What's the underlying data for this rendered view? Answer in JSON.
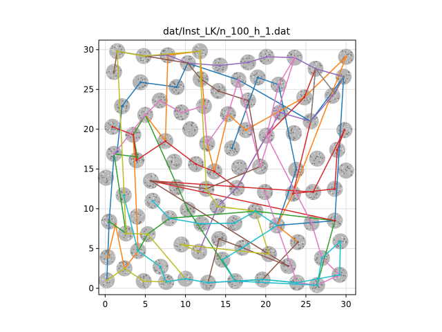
{
  "chart_data": {
    "type": "scatter",
    "title": "dat/Inst_LK/n_100_h_1.dat",
    "xlabel": "",
    "ylabel": "",
    "xlim": [
      -0.8,
      31.2
    ],
    "ylim": [
      -0.8,
      31.2
    ],
    "xticks": [
      0,
      5,
      10,
      15,
      20,
      25,
      30
    ],
    "yticks": [
      0,
      5,
      10,
      15,
      20,
      25,
      30
    ],
    "tick_labels": {
      "x": [
        "0",
        "5",
        "10",
        "15",
        "20",
        "25",
        "30"
      ],
      "y": [
        "0",
        "5",
        "10",
        "15",
        "20",
        "25",
        "30"
      ]
    },
    "grid": true,
    "region_radius": 1.0,
    "region_color": "#a9a9a9",
    "regions": [
      [
        0.2,
        1.0
      ],
      [
        2.4,
        2.5
      ],
      [
        4.8,
        0.9
      ],
      [
        7.6,
        0.8
      ],
      [
        10.0,
        1.2
      ],
      [
        12.8,
        0.7
      ],
      [
        16.2,
        0.9
      ],
      [
        19.6,
        1.1
      ],
      [
        23.9,
        0.7
      ],
      [
        26.4,
        0.4
      ],
      [
        29.2,
        1.7
      ],
      [
        0.3,
        3.9
      ],
      [
        4.1,
        4.7
      ],
      [
        6.9,
        2.7
      ],
      [
        11.7,
        4.6
      ],
      [
        14.6,
        3.6
      ],
      [
        17.1,
        5.1
      ],
      [
        20.4,
        4.3
      ],
      [
        22.8,
        2.8
      ],
      [
        24.0,
        5.8
      ],
      [
        27.0,
        3.8
      ],
      [
        29.3,
        5.9
      ],
      [
        0.5,
        8.4
      ],
      [
        2.6,
        6.9
      ],
      [
        5.3,
        6.8
      ],
      [
        8.0,
        8.8
      ],
      [
        9.5,
        5.5
      ],
      [
        12.0,
        8.1
      ],
      [
        14.2,
        6.2
      ],
      [
        16.1,
        8.2
      ],
      [
        18.7,
        9.7
      ],
      [
        21.4,
        7.9
      ],
      [
        25.7,
        8.2
      ],
      [
        28.6,
        8.5
      ],
      [
        0.1,
        13.9
      ],
      [
        2.3,
        11.7
      ],
      [
        4.0,
        9.0
      ],
      [
        5.9,
        11.0
      ],
      [
        5.7,
        13.5
      ],
      [
        8.9,
        12.7
      ],
      [
        10.3,
        9.9
      ],
      [
        12.6,
        12.5
      ],
      [
        14.0,
        10.3
      ],
      [
        16.4,
        12.6
      ],
      [
        19.9,
        12.1
      ],
      [
        23.4,
        11.9
      ],
      [
        25.9,
        12.1
      ],
      [
        28.6,
        12.5
      ],
      [
        1.1,
        16.9
      ],
      [
        3.9,
        16.1
      ],
      [
        7.5,
        18.5
      ],
      [
        8.6,
        15.9
      ],
      [
        11.3,
        15.6
      ],
      [
        13.6,
        14.7
      ],
      [
        15.8,
        17.6
      ],
      [
        16.7,
        15.2
      ],
      [
        19.3,
        15.3
      ],
      [
        23.8,
        14.9
      ],
      [
        26.4,
        16.3
      ],
      [
        28.9,
        17.4
      ],
      [
        30.0,
        14.8
      ],
      [
        0.9,
        20.3
      ],
      [
        3.5,
        19.3
      ],
      [
        5.0,
        21.8
      ],
      [
        2.1,
        22.9
      ],
      [
        6.8,
        23.6
      ],
      [
        9.5,
        22.1
      ],
      [
        10.6,
        20.0
      ],
      [
        12.7,
        18.2
      ],
      [
        15.3,
        21.9
      ],
      [
        17.5,
        19.9
      ],
      [
        20.1,
        19.2
      ],
      [
        21.8,
        22.1
      ],
      [
        23.5,
        19.5
      ],
      [
        25.6,
        21.0
      ],
      [
        29.8,
        19.9
      ],
      [
        1.1,
        27.2
      ],
      [
        1.5,
        29.8
      ],
      [
        4.4,
        25.9
      ],
      [
        4.8,
        29.2
      ],
      [
        7.8,
        29.3
      ],
      [
        8.9,
        25.3
      ],
      [
        10.3,
        28.3
      ],
      [
        11.8,
        29.8
      ],
      [
        11.9,
        26.3
      ],
      [
        12.3,
        22.9
      ],
      [
        14.1,
        24.8
      ],
      [
        14.3,
        28.0
      ],
      [
        16.6,
        26.2
      ],
      [
        17.8,
        23.6
      ],
      [
        17.8,
        28.4
      ],
      [
        19.0,
        26.5
      ],
      [
        20.1,
        29.1
      ],
      [
        21.6,
        25.6
      ],
      [
        23.6,
        29.0
      ],
      [
        24.8,
        24.0
      ],
      [
        26.2,
        27.6
      ],
      [
        28.3,
        24.2
      ],
      [
        29.7,
        26.6
      ],
      [
        30.0,
        29.1
      ]
    ],
    "series": [
      {
        "color": "#1f77b4",
        "points": [
          [
            0.2,
            1.0
          ],
          [
            0.5,
            8.4
          ],
          [
            1.1,
            16.9
          ],
          [
            1.5,
            17.2
          ],
          [
            2.1,
            22.9
          ],
          [
            4.4,
            25.9
          ],
          [
            8.9,
            25.3
          ],
          [
            10.3,
            28.3
          ],
          [
            16.6,
            26.2
          ],
          [
            25.6,
            21.0
          ],
          [
            29.7,
            26.6
          ],
          [
            28.6,
            8.5
          ],
          [
            21.4,
            7.9
          ],
          [
            23.8,
            14.9
          ],
          [
            21.6,
            25.6
          ],
          [
            19.0,
            26.5
          ],
          [
            15.8,
            17.6
          ]
        ]
      },
      {
        "color": "#ff7f0e",
        "points": [
          [
            0.3,
            3.9
          ],
          [
            1.3,
            8.0
          ],
          [
            2.4,
            2.5
          ],
          [
            4.1,
            4.7
          ],
          [
            3.5,
            19.3
          ],
          [
            5.0,
            21.8
          ],
          [
            7.5,
            18.5
          ],
          [
            7.8,
            29.3
          ],
          [
            11.8,
            29.8
          ],
          [
            12.7,
            18.2
          ],
          [
            13.6,
            14.7
          ],
          [
            15.3,
            21.9
          ],
          [
            17.5,
            19.9
          ],
          [
            24.8,
            24.0
          ],
          [
            30.0,
            29.1
          ],
          [
            23.4,
            11.9
          ],
          [
            21.4,
            7.9
          ],
          [
            24.0,
            5.8
          ]
        ]
      },
      {
        "color": "#2ca02c",
        "points": [
          [
            0.5,
            8.4
          ],
          [
            2.6,
            6.9
          ],
          [
            1.1,
            16.9
          ],
          [
            4.0,
            16.5
          ],
          [
            3.5,
            19.3
          ],
          [
            5.0,
            21.8
          ],
          [
            10.3,
            9.9
          ],
          [
            16.2,
            0.9
          ],
          [
            19.6,
            1.1
          ],
          [
            23.9,
            0.7
          ],
          [
            26.4,
            0.4
          ],
          [
            28.6,
            8.5
          ],
          [
            18.7,
            9.7
          ],
          [
            8.0,
            8.8
          ],
          [
            5.3,
            6.8
          ],
          [
            4.1,
            4.7
          ]
        ]
      },
      {
        "color": "#d62728",
        "points": [
          [
            0.9,
            20.3
          ],
          [
            3.5,
            19.3
          ],
          [
            3.9,
            16.1
          ],
          [
            7.5,
            18.5
          ],
          [
            11.3,
            15.6
          ],
          [
            13.6,
            14.7
          ],
          [
            16.4,
            12.6
          ],
          [
            20.1,
            19.2
          ],
          [
            24.8,
            24.0
          ],
          [
            26.2,
            27.6
          ],
          [
            25.6,
            21.0
          ],
          [
            23.4,
            11.9
          ],
          [
            28.6,
            12.5
          ],
          [
            28.9,
            17.4
          ],
          [
            29.8,
            19.9
          ],
          [
            25.9,
            12.1
          ],
          [
            5.7,
            13.5
          ],
          [
            28.6,
            8.5
          ]
        ]
      },
      {
        "color": "#9467bd",
        "points": [
          [
            1.5,
            29.8
          ],
          [
            4.8,
            29.2
          ],
          [
            7.8,
            29.3
          ],
          [
            10.3,
            28.3
          ],
          [
            14.3,
            28.0
          ],
          [
            17.8,
            28.4
          ],
          [
            20.1,
            29.1
          ],
          [
            23.6,
            29.0
          ],
          [
            26.2,
            27.6
          ],
          [
            29.7,
            26.6
          ],
          [
            28.3,
            24.2
          ],
          [
            25.6,
            21.0
          ],
          [
            21.8,
            22.1
          ],
          [
            20.1,
            19.2
          ],
          [
            16.4,
            12.6
          ],
          [
            14.0,
            10.3
          ],
          [
            11.7,
            4.6
          ],
          [
            9.5,
            5.5
          ]
        ]
      },
      {
        "color": "#8c564b",
        "points": [
          [
            1.1,
            27.2
          ],
          [
            1.5,
            29.8
          ],
          [
            10.3,
            28.3
          ],
          [
            11.9,
            26.3
          ],
          [
            14.1,
            24.8
          ],
          [
            17.8,
            23.6
          ],
          [
            19.3,
            15.3
          ],
          [
            12.6,
            12.5
          ],
          [
            5.7,
            13.5
          ],
          [
            20.4,
            4.3
          ],
          [
            22.8,
            2.8
          ],
          [
            17.1,
            5.1
          ],
          [
            14.2,
            6.2
          ],
          [
            12.8,
            0.7
          ],
          [
            16.2,
            0.9
          ],
          [
            19.6,
            1.1
          ],
          [
            24.0,
            5.8
          ]
        ]
      },
      {
        "color": "#e377c2",
        "points": [
          [
            1.1,
            16.9
          ],
          [
            5.0,
            21.8
          ],
          [
            6.8,
            23.6
          ],
          [
            9.5,
            22.1
          ],
          [
            12.3,
            22.9
          ],
          [
            12.7,
            18.2
          ],
          [
            15.3,
            21.9
          ],
          [
            16.6,
            26.2
          ],
          [
            19.3,
            15.3
          ],
          [
            23.6,
            29.0
          ],
          [
            21.6,
            25.6
          ],
          [
            20.1,
            19.2
          ],
          [
            25.7,
            8.2
          ],
          [
            27.0,
            3.8
          ],
          [
            29.2,
            1.7
          ],
          [
            26.4,
            0.4
          ],
          [
            23.9,
            0.7
          ],
          [
            19.9,
            12.1
          ]
        ]
      },
      {
        "color": "#7f7f7f",
        "points": [
          [
            29.7,
            26.6
          ],
          [
            28.6,
            24.5
          ],
          [
            26.2,
            27.6
          ],
          [
            25.6,
            21.0
          ]
        ]
      },
      {
        "color": "#bcbd22",
        "points": [
          [
            0.2,
            1.0
          ],
          [
            2.4,
            2.5
          ],
          [
            4.8,
            0.9
          ],
          [
            7.6,
            0.8
          ],
          [
            10.0,
            1.2
          ],
          [
            5.3,
            6.8
          ],
          [
            2.6,
            6.9
          ],
          [
            1.5,
            29.8
          ],
          [
            4.8,
            29.2
          ],
          [
            11.8,
            29.8
          ],
          [
            11.9,
            26.3
          ],
          [
            12.6,
            12.5
          ],
          [
            14.0,
            10.3
          ],
          [
            18.7,
            9.7
          ],
          [
            20.4,
            4.3
          ],
          [
            9.5,
            5.5
          ],
          [
            11.7,
            4.6
          ]
        ]
      },
      {
        "color": "#17becf",
        "points": [
          [
            2.3,
            11.7
          ],
          [
            4.1,
            4.7
          ],
          [
            6.9,
            2.7
          ],
          [
            7.6,
            0.8
          ],
          [
            10.0,
            1.2
          ],
          [
            12.8,
            0.7
          ],
          [
            19.6,
            1.1
          ],
          [
            23.9,
            0.7
          ],
          [
            29.2,
            1.7
          ],
          [
            29.3,
            5.9
          ],
          [
            27.0,
            3.8
          ],
          [
            26.4,
            0.4
          ],
          [
            16.2,
            0.9
          ],
          [
            14.6,
            3.6
          ],
          [
            17.1,
            5.1
          ],
          [
            21.4,
            7.9
          ],
          [
            18.7,
            9.7
          ],
          [
            16.1,
            8.2
          ],
          [
            12.0,
            8.1
          ],
          [
            8.0,
            8.8
          ],
          [
            5.9,
            11.0
          ]
        ]
      }
    ]
  }
}
